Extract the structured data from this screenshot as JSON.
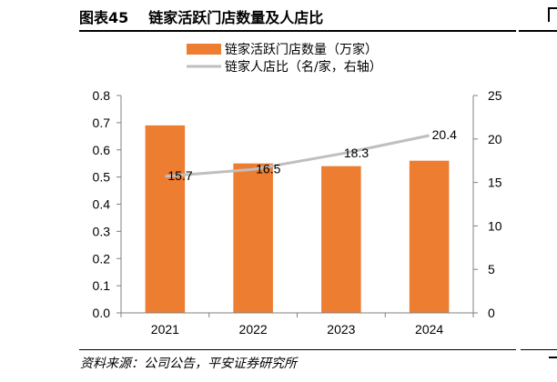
{
  "figure": {
    "number": "图表45",
    "title": "链家活跃门店数量及人店比",
    "source": "资料来源：公司公告，平安证券研究所"
  },
  "chart_data": {
    "type": "bar+line",
    "categories": [
      "2021",
      "2022",
      "2023",
      "2024"
    ],
    "series": [
      {
        "name": "链家活跃门店数量（万家）",
        "type": "bar",
        "axis": "left",
        "color": "#ED7D31",
        "values": [
          0.69,
          0.55,
          0.54,
          0.56
        ]
      },
      {
        "name": "链家人店比（名/家，右轴）",
        "type": "line",
        "axis": "right",
        "color": "#BFBFBF",
        "values": [
          15.7,
          16.5,
          18.3,
          20.4
        ],
        "labels": [
          "15.7",
          "16.5",
          "18.3",
          "20.4"
        ]
      }
    ],
    "y_left": {
      "min": 0,
      "max": 0.8,
      "ticks": [
        "0.0",
        "0.1",
        "0.2",
        "0.3",
        "0.4",
        "0.5",
        "0.6",
        "0.7",
        "0.8"
      ]
    },
    "y_right": {
      "min": 0,
      "max": 25,
      "ticks": [
        "0",
        "5",
        "10",
        "15",
        "20",
        "25"
      ]
    },
    "legend_position": "top-center",
    "grid": false
  }
}
